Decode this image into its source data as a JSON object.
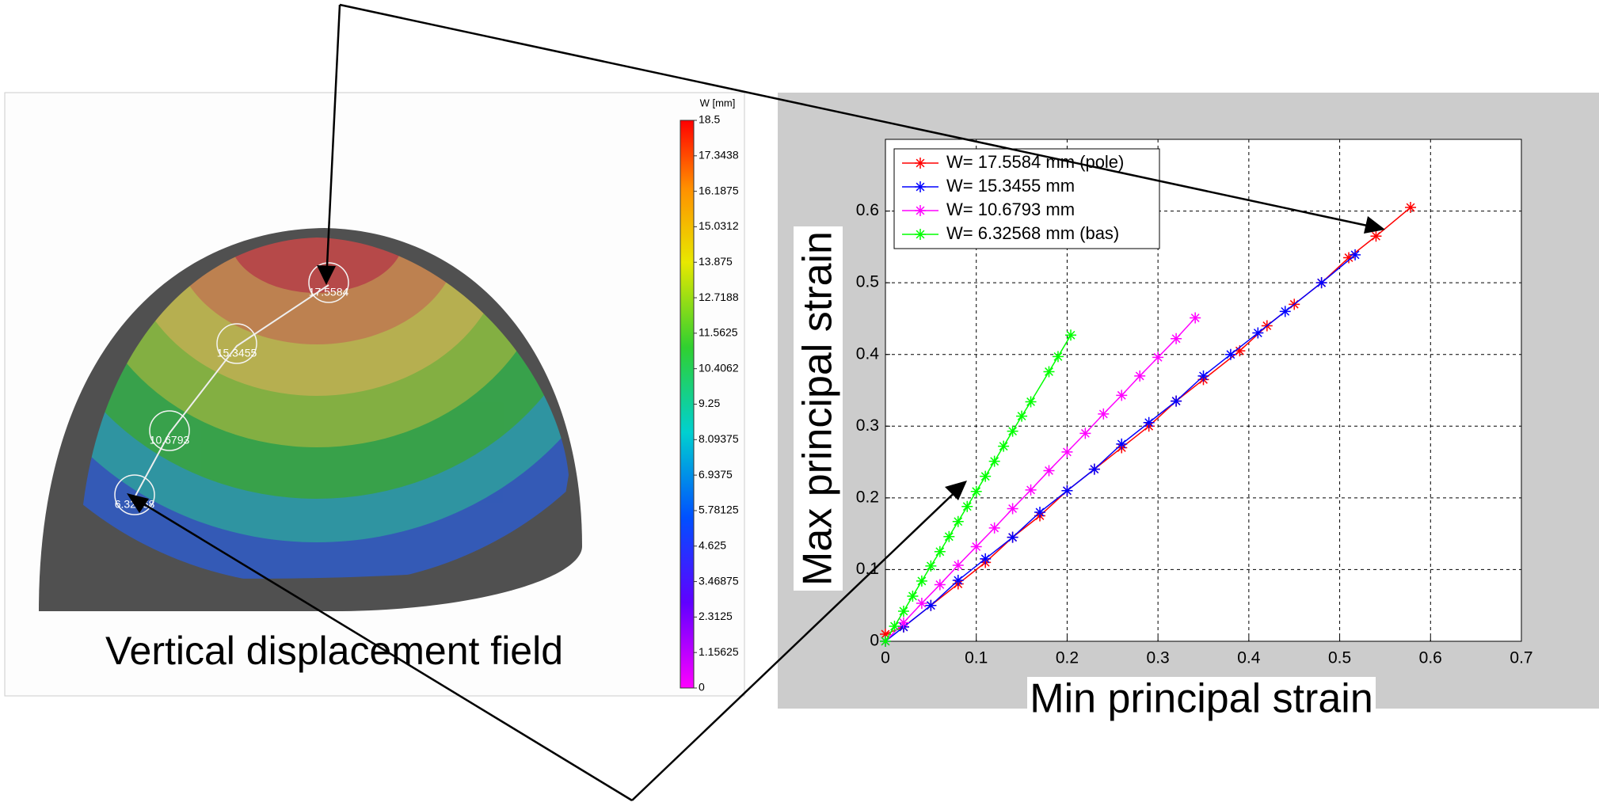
{
  "chart_data": [
    {
      "type": "colormap",
      "title": "Vertical displacement field",
      "colorbar_label": "W [mm]",
      "clim": [
        0,
        18.5
      ],
      "cticks": [
        18.5,
        17.3438,
        16.1875,
        15.0312,
        13.875,
        12.7188,
        11.5625,
        10.4062,
        9.25,
        8.09375,
        6.9375,
        5.78125,
        4.625,
        3.46875,
        2.3125,
        1.15625,
        0
      ],
      "point_values": [
        17.5584,
        15.3455,
        10.6793,
        6.32568
      ]
    },
    {
      "type": "line",
      "xlabel": "Min principal strain",
      "ylabel": "Max principal strain",
      "xlim": [
        0,
        0.7
      ],
      "ylim": [
        0,
        0.7
      ],
      "xticks": [
        0,
        0.1,
        0.2,
        0.3,
        0.4,
        0.5,
        0.6,
        0.7
      ],
      "yticks": [
        0,
        0.1,
        0.2,
        0.3,
        0.4,
        0.5,
        0.6
      ],
      "grid": true,
      "legend": "upper-left",
      "series": [
        {
          "name": "W= 17.5584 mm (pole)",
          "color": "#ff0000",
          "x": [
            0,
            0.02,
            0.05,
            0.08,
            0.11,
            0.14,
            0.17,
            0.2,
            0.23,
            0.26,
            0.29,
            0.32,
            0.35,
            0.39,
            0.42,
            0.45,
            0.48,
            0.51,
            0.54,
            0.578
          ],
          "values": [
            0.01,
            0.02,
            0.05,
            0.08,
            0.11,
            0.145,
            0.175,
            0.21,
            0.24,
            0.27,
            0.3,
            0.335,
            0.365,
            0.405,
            0.44,
            0.47,
            0.5,
            0.535,
            0.565,
            0.605
          ]
        },
        {
          "name": "W= 15.3455 mm",
          "color": "#0000ff",
          "x": [
            0,
            0.02,
            0.05,
            0.08,
            0.11,
            0.14,
            0.17,
            0.2,
            0.23,
            0.26,
            0.29,
            0.32,
            0.35,
            0.38,
            0.41,
            0.44,
            0.48,
            0.517
          ],
          "values": [
            0,
            0.02,
            0.05,
            0.085,
            0.115,
            0.145,
            0.18,
            0.21,
            0.24,
            0.275,
            0.305,
            0.335,
            0.37,
            0.4,
            0.43,
            0.46,
            0.5,
            0.539
          ]
        },
        {
          "name": "W= 10.6793 mm",
          "color": "#ff00ff",
          "x": [
            0,
            0.02,
            0.04,
            0.06,
            0.08,
            0.1,
            0.12,
            0.14,
            0.16,
            0.18,
            0.2,
            0.22,
            0.24,
            0.26,
            0.28,
            0.3,
            0.32,
            0.341
          ],
          "values": [
            0,
            0.026,
            0.053,
            0.079,
            0.106,
            0.132,
            0.158,
            0.185,
            0.211,
            0.238,
            0.264,
            0.29,
            0.317,
            0.343,
            0.37,
            0.396,
            0.422,
            0.451
          ]
        },
        {
          "name": "W= 6.32568 mm (bas)",
          "color": "#00ff00",
          "x": [
            0,
            0.01,
            0.02,
            0.03,
            0.04,
            0.05,
            0.06,
            0.07,
            0.08,
            0.09,
            0.1,
            0.11,
            0.12,
            0.13,
            0.14,
            0.15,
            0.16,
            0.18,
            0.19,
            0.204
          ],
          "values": [
            0,
            0.021,
            0.042,
            0.063,
            0.084,
            0.105,
            0.125,
            0.146,
            0.167,
            0.188,
            0.209,
            0.23,
            0.251,
            0.272,
            0.293,
            0.314,
            0.334,
            0.376,
            0.397,
            0.427
          ]
        }
      ]
    }
  ]
}
